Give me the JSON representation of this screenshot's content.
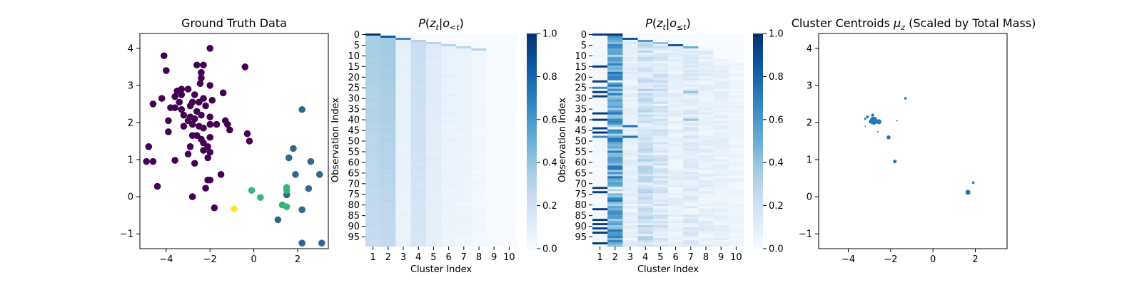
{
  "chart_data": [
    {
      "type": "scatter",
      "title": "Ground Truth Data",
      "xlim": [
        -5.2,
        3.4
      ],
      "ylim": [
        -1.4,
        4.4
      ],
      "xticks": [
        -4,
        -2,
        0,
        2
      ],
      "yticks": [
        -1,
        0,
        1,
        2,
        3,
        4
      ],
      "xtick_labels": [
        "−4",
        "−2",
        "0",
        "2"
      ],
      "ytick_labels": [
        "−1",
        "0",
        "1",
        "2",
        "3",
        "4"
      ],
      "colors": [
        "#440154",
        "#31688e",
        "#35b779",
        "#fde725"
      ],
      "series": [
        {
          "points": [
            [
              -2.0,
              4.0
            ],
            [
              -4.1,
              3.8
            ],
            [
              -0.4,
              3.5
            ],
            [
              -2.6,
              3.55
            ],
            [
              -2.3,
              3.55
            ],
            [
              -4.0,
              3.4
            ],
            [
              -2.4,
              3.35
            ],
            [
              -2.4,
              3.2
            ],
            [
              -2.0,
              3.0
            ],
            [
              -2.45,
              3.05
            ],
            [
              -3.3,
              2.9
            ],
            [
              -3.0,
              2.9
            ],
            [
              -3.5,
              2.85
            ],
            [
              -1.4,
              2.8
            ],
            [
              -2.7,
              2.75
            ],
            [
              -3.3,
              2.75
            ],
            [
              -4.2,
              2.65
            ],
            [
              -3.6,
              2.7
            ],
            [
              -2.3,
              2.65
            ],
            [
              -1.9,
              2.6
            ],
            [
              -3.4,
              2.55
            ],
            [
              -2.5,
              2.55
            ],
            [
              -2.8,
              2.55
            ],
            [
              -2.2,
              2.45
            ],
            [
              -2.9,
              2.45
            ],
            [
              -3.6,
              2.4
            ],
            [
              -3.8,
              2.4
            ],
            [
              -3.3,
              2.35
            ],
            [
              -4.6,
              2.5
            ],
            [
              -2.6,
              2.3
            ],
            [
              -3.2,
              2.2
            ],
            [
              -2.9,
              2.15
            ],
            [
              -2.4,
              2.2
            ],
            [
              -2.7,
              2.1
            ],
            [
              -2.0,
              2.15
            ],
            [
              -3.0,
              2.05
            ],
            [
              -2.8,
              1.95
            ],
            [
              -3.9,
              2.05
            ],
            [
              -3.2,
              1.9
            ],
            [
              -1.3,
              2.05
            ],
            [
              -2.0,
              1.95
            ],
            [
              -1.7,
              1.95
            ],
            [
              -1.2,
              1.95
            ],
            [
              -2.5,
              1.9
            ],
            [
              -2.3,
              1.85
            ],
            [
              -1.1,
              1.8
            ],
            [
              -3.9,
              1.75
            ],
            [
              -2.8,
              1.65
            ],
            [
              -2.6,
              1.65
            ],
            [
              -2.0,
              1.6
            ],
            [
              -0.3,
              1.7
            ],
            [
              -2.4,
              1.55
            ],
            [
              -2.3,
              1.45
            ],
            [
              -0.2,
              1.5
            ],
            [
              -2.9,
              1.35
            ],
            [
              -4.8,
              1.35
            ],
            [
              -2.1,
              1.35
            ],
            [
              -2.3,
              1.25
            ],
            [
              -2.0,
              1.2
            ],
            [
              -3.0,
              1.15
            ],
            [
              -2.1,
              1.05
            ],
            [
              -4.9,
              0.95
            ],
            [
              -4.6,
              0.95
            ],
            [
              -3.6,
              0.98
            ],
            [
              -2.7,
              0.9
            ],
            [
              -1.5,
              0.6
            ],
            [
              -2.1,
              0.45
            ],
            [
              -2.0,
              0.45
            ],
            [
              -4.4,
              0.28
            ],
            [
              -2.2,
              0.23
            ],
            [
              -2.8,
              0.0
            ],
            [
              -1.8,
              -0.3
            ]
          ]
        },
        {
          "points": [
            [
              2.2,
              2.35
            ],
            [
              1.8,
              1.3
            ],
            [
              1.6,
              1.05
            ],
            [
              2.6,
              0.95
            ],
            [
              1.9,
              0.6
            ],
            [
              3.0,
              0.6
            ],
            [
              2.5,
              0.22
            ],
            [
              1.5,
              0.05
            ],
            [
              2.2,
              -0.35
            ],
            [
              1.1,
              -0.62
            ],
            [
              2.2,
              -1.25
            ],
            [
              3.1,
              -1.25
            ]
          ]
        },
        {
          "points": [
            [
              1.5,
              0.25
            ],
            [
              -0.1,
              0.17
            ],
            [
              0.3,
              -0.02
            ],
            [
              1.5,
              0.17
            ],
            [
              1.3,
              -0.22
            ],
            [
              1.5,
              -0.27
            ]
          ]
        },
        {
          "points": [
            [
              -0.9,
              -0.33
            ]
          ]
        }
      ]
    },
    {
      "type": "heatmap",
      "title": "P(z_t|o_<t)",
      "xlabel": "Cluster Index",
      "ylabel": "Observation Index",
      "rows": 100,
      "columns": [
        "1",
        "2",
        "3",
        "4",
        "5",
        "6",
        "7",
        "8",
        "9",
        "10"
      ],
      "ytick_labels": [
        "0",
        "5",
        "10",
        "15",
        "20",
        "25",
        "30",
        "35",
        "40",
        "45",
        "50",
        "55",
        "60",
        "65",
        "70",
        "75",
        "80",
        "85",
        "90",
        "95"
      ],
      "column_start_row": [
        0,
        1,
        2,
        3,
        4,
        5,
        6,
        7,
        999,
        999
      ],
      "column_base_value": [
        0.34,
        0.36,
        0.08,
        0.22,
        0.12,
        0.06,
        0.05,
        0.02,
        0.0,
        0.0
      ],
      "colorbar": {
        "min": 0.0,
        "max": 1.0,
        "ticks": [
          "0.0",
          "0.2",
          "0.4",
          "0.6",
          "0.8",
          "1.0"
        ]
      }
    },
    {
      "type": "heatmap",
      "title": "P(z_t|o_≤t)",
      "xlabel": "Cluster Index",
      "ylabel": "Observation Index",
      "rows": 100,
      "columns": [
        "1",
        "2",
        "3",
        "4",
        "5",
        "6",
        "7",
        "8",
        "9",
        "10"
      ],
      "ytick_labels": [
        "0",
        "5",
        "10",
        "15",
        "20",
        "25",
        "30",
        "35",
        "40",
        "45",
        "50",
        "55",
        "60",
        "65",
        "70",
        "75",
        "80",
        "85",
        "90",
        "95"
      ],
      "column_start_row": [
        0,
        0,
        2,
        3,
        4,
        5,
        6,
        7,
        12,
        14
      ],
      "colorbar": {
        "min": 0.0,
        "max": 1.0,
        "ticks": [
          "0.0",
          "0.2",
          "0.4",
          "0.6",
          "0.8",
          "1.0"
        ]
      }
    },
    {
      "type": "scatter",
      "title": "Cluster Centroids μ_z (Scaled by Total Mass)",
      "xlim": [
        -5.4,
        3.5
      ],
      "ylim": [
        -1.4,
        4.4
      ],
      "xticks": [
        -4,
        -2,
        0,
        2
      ],
      "yticks": [
        -1,
        0,
        1,
        2,
        3,
        4
      ],
      "xtick_labels": [
        "−4",
        "−2",
        "0",
        "2"
      ],
      "ytick_labels": [
        "−1",
        "0",
        "1",
        "2",
        "3",
        "4"
      ],
      "color": "#1f77b4",
      "points": [
        [
          -2.8,
          2.05,
          5.5
        ],
        [
          -2.55,
          2.02,
          3.5
        ],
        [
          -2.95,
          2.02,
          2.5
        ],
        [
          -3.1,
          2.15,
          2
        ],
        [
          -2.85,
          2.2,
          2.2
        ],
        [
          -3.2,
          2.1,
          1.5
        ],
        [
          -1.3,
          2.65,
          1.8
        ],
        [
          -1.7,
          2.05,
          1.0
        ],
        [
          -2.6,
          1.75,
          1.0
        ],
        [
          -2.1,
          1.6,
          2.8
        ],
        [
          -3.2,
          1.9,
          0.8
        ],
        [
          -1.8,
          0.95,
          2.5
        ],
        [
          1.65,
          0.12,
          3.5
        ],
        [
          1.9,
          0.38,
          1.8
        ]
      ]
    }
  ]
}
